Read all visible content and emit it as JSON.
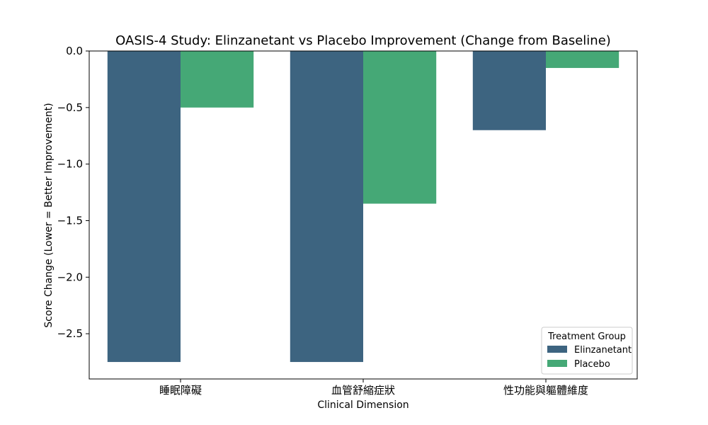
{
  "chart_data": {
    "type": "bar",
    "title": "OASIS-4 Study: Elinzanetant vs Placebo Improvement (Change from Baseline)",
    "xlabel": "Clinical Dimension",
    "ylabel": "Score Change (Lower = Better Improvement)",
    "categories": [
      "睡眠障礙",
      "血管舒縮症狀",
      "性功能與軀體維度"
    ],
    "series": [
      {
        "name": "Elinzanetant",
        "values": [
          -2.75,
          -2.75,
          -0.7
        ],
        "color": "#3d6480"
      },
      {
        "name": "Placebo",
        "values": [
          -0.5,
          -1.35,
          -0.15
        ],
        "color": "#45a876"
      }
    ],
    "ylim": [
      -2.9,
      0.0
    ],
    "yticks": [
      0.0,
      -0.5,
      -1.0,
      -1.5,
      -2.0,
      -2.5
    ],
    "ytick_labels": [
      "0.0",
      "−0.5",
      "−1.0",
      "−1.5",
      "−2.0",
      "−2.5"
    ],
    "grid": false,
    "legend": {
      "title": "Treatment Group",
      "placement": "lower-right"
    }
  }
}
